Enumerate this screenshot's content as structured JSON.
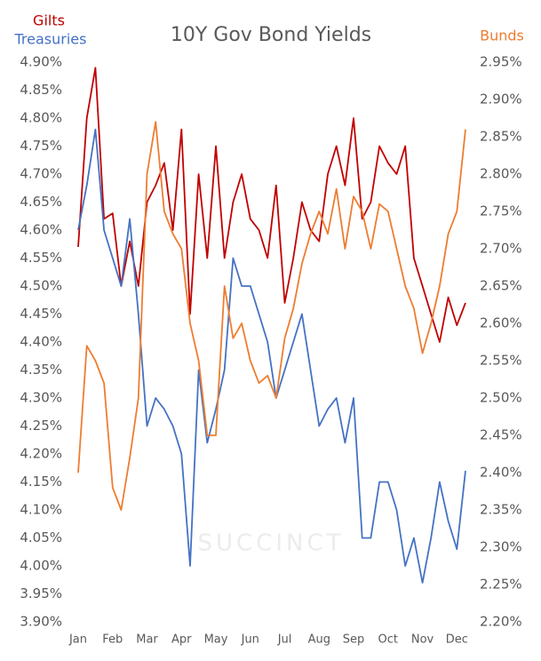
{
  "chart_data": {
    "type": "line",
    "title": "10Y Gov Bond Yields",
    "watermark": "SUCCINCT",
    "categories": [
      "Jan",
      null,
      null,
      null,
      "Feb",
      null,
      null,
      null,
      "Mar",
      null,
      null,
      null,
      "Apr",
      null,
      null,
      null,
      "May",
      null,
      null,
      null,
      "Jun",
      null,
      null,
      null,
      "Jul",
      null,
      null,
      null,
      "Aug",
      null,
      null,
      null,
      "Sep",
      null,
      null,
      null,
      "Oct",
      null,
      null,
      null,
      "Nov",
      null,
      null,
      null,
      "Dec",
      null
    ],
    "series": [
      {
        "name": "Gilts",
        "color": "#c00000",
        "values": [
          4.57,
          4.8,
          4.89,
          4.62,
          4.63,
          4.5,
          4.58,
          4.5,
          4.65,
          4.68,
          4.72,
          4.6,
          4.78,
          4.45,
          4.7,
          4.55,
          4.75,
          4.55,
          4.65,
          4.7,
          4.62,
          4.6,
          4.55,
          4.68,
          4.47,
          4.55,
          4.65,
          4.6,
          4.58,
          4.7,
          4.75,
          4.68,
          4.8,
          4.62,
          4.65,
          4.75,
          4.72,
          4.7,
          4.75,
          4.55,
          4.5,
          4.45,
          4.4,
          4.48,
          4.43,
          4.47
        ]
      },
      {
        "name": "Treasuries",
        "color": "#4472c4",
        "values": [
          4.6,
          4.68,
          4.78,
          4.6,
          4.55,
          4.5,
          4.62,
          4.45,
          4.25,
          4.3,
          4.28,
          4.25,
          4.2,
          4.0,
          4.35,
          4.22,
          4.28,
          4.35,
          4.55,
          4.5,
          4.5,
          4.45,
          4.4,
          4.3,
          4.35,
          4.4,
          4.45,
          4.35,
          4.25,
          4.28,
          4.3,
          4.22,
          4.3,
          4.05,
          4.05,
          4.15,
          4.15,
          4.1,
          4.0,
          4.05,
          3.97,
          4.05,
          4.15,
          4.08,
          4.03,
          4.17
        ]
      },
      {
        "name": "Bunds",
        "color": "#ed7d31",
        "axis": "y2",
        "values": [
          2.4,
          2.57,
          2.55,
          2.52,
          2.38,
          2.35,
          2.42,
          2.5,
          2.8,
          2.87,
          2.75,
          2.72,
          2.7,
          2.6,
          2.55,
          2.45,
          2.45,
          2.65,
          2.58,
          2.6,
          2.55,
          2.52,
          2.53,
          2.5,
          2.58,
          2.62,
          2.68,
          2.72,
          2.75,
          2.72,
          2.78,
          2.7,
          2.77,
          2.75,
          2.7,
          2.76,
          2.75,
          2.7,
          2.65,
          2.62,
          2.56,
          2.6,
          2.65,
          2.72,
          2.75,
          2.86
        ]
      }
    ],
    "ylim": [
      3.9,
      4.9
    ],
    "yticks": [
      {
        "value": 3.9,
        "label": "3.90%"
      },
      {
        "value": 3.95,
        "label": "3.95%"
      },
      {
        "value": 4.0,
        "label": "4.00%"
      },
      {
        "value": 4.05,
        "label": "4.05%"
      },
      {
        "value": 4.1,
        "label": "4.10%"
      },
      {
        "value": 4.15,
        "label": "4.15%"
      },
      {
        "value": 4.2,
        "label": "4.20%"
      },
      {
        "value": 4.25,
        "label": "4.25%"
      },
      {
        "value": 4.3,
        "label": "4.30%"
      },
      {
        "value": 4.35,
        "label": "4.35%"
      },
      {
        "value": 4.4,
        "label": "4.40%"
      },
      {
        "value": 4.45,
        "label": "4.45%"
      },
      {
        "value": 4.5,
        "label": "4.50%"
      },
      {
        "value": 4.55,
        "label": "4.55%"
      },
      {
        "value": 4.6,
        "label": "4.60%"
      },
      {
        "value": 4.65,
        "label": "4.65%"
      },
      {
        "value": 4.7,
        "label": "4.70%"
      },
      {
        "value": 4.75,
        "label": "4.75%"
      },
      {
        "value": 4.8,
        "label": "4.80%"
      },
      {
        "value": 4.85,
        "label": "4.85%"
      },
      {
        "value": 4.9,
        "label": "4.90%"
      }
    ],
    "y2lim": [
      2.2,
      2.95
    ],
    "y2ticks": [
      {
        "value": 2.2,
        "label": "2.20%"
      },
      {
        "value": 2.25,
        "label": "2.25%"
      },
      {
        "value": 2.3,
        "label": "2.30%"
      },
      {
        "value": 2.35,
        "label": "2.35%"
      },
      {
        "value": 2.4,
        "label": "2.40%"
      },
      {
        "value": 2.45,
        "label": "2.45%"
      },
      {
        "value": 2.5,
        "label": "2.50%"
      },
      {
        "value": 2.55,
        "label": "2.55%"
      },
      {
        "value": 2.6,
        "label": "2.60%"
      },
      {
        "value": 2.65,
        "label": "2.65%"
      },
      {
        "value": 2.7,
        "label": "2.70%"
      },
      {
        "value": 2.75,
        "label": "2.75%"
      },
      {
        "value": 2.8,
        "label": "2.80%"
      },
      {
        "value": 2.85,
        "label": "2.85%"
      },
      {
        "value": 2.9,
        "label": "2.90%"
      },
      {
        "value": 2.95,
        "label": "2.95%"
      }
    ],
    "grid": false
  }
}
